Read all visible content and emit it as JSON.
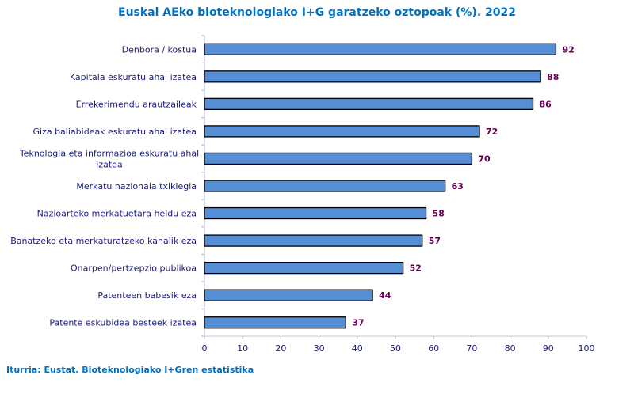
{
  "chart_data": {
    "type": "bar",
    "orientation": "horizontal",
    "title": "Euskal AEko bioteknologiako I+G garatzeko oztopoak (%). 2022",
    "source": "Iturria: Eustat. Bioteknologiako I+Gren estatistika",
    "categories": [
      "Denbora / kostua",
      "Kapitala eskuratu ahal izatea",
      "Errekerimendu arautzaileak",
      "Giza baliabideak eskuratu ahal izatea",
      "Teknologia eta informazioa eskuratu ahal|izatea",
      "Merkatu nazionala txikiegia",
      "Nazioarteko merkatuetara heldu eza",
      "Banatzeko eta merkaturatzeko kanalik eza",
      "Onarpen/pertzepzio publikoa",
      "Patenteen babesik eza",
      "Patente eskubidea besteek izatea"
    ],
    "values": [
      92,
      88,
      86,
      72,
      70,
      63,
      58,
      57,
      52,
      44,
      37
    ],
    "xlim": [
      0,
      100
    ],
    "xticks": [
      "0",
      "10",
      "20",
      "30",
      "40",
      "50",
      "60",
      "70",
      "80",
      "90",
      "100"
    ],
    "grid": false,
    "bar_color": "#558ed5",
    "value_color": "#660055"
  }
}
